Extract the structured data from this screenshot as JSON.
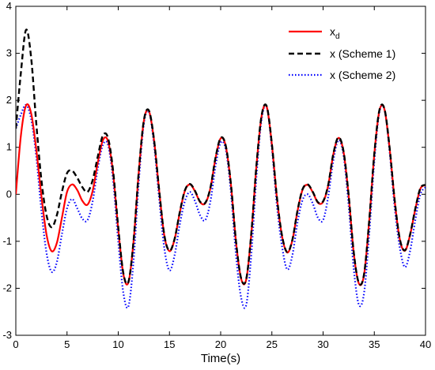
{
  "chart_data": {
    "type": "line",
    "xlabel": "Time(s)",
    "ylabel": "",
    "xlim": [
      0,
      40
    ],
    "ylim": [
      -3,
      4
    ],
    "xticks": [
      "0",
      "5",
      "10",
      "15",
      "20",
      "25",
      "30",
      "35",
      "40"
    ],
    "yticks": [
      "-3",
      "-2",
      "-1",
      "0",
      "1",
      "2",
      "3",
      "4"
    ],
    "grid": false,
    "legend_position": "top-right",
    "legend": {
      "xd_main": "x",
      "xd_sub": "d",
      "s1": "x (Scheme 1)",
      "s2": "x (Scheme 2)"
    },
    "series": [
      {
        "key": "xd",
        "color": "#ff0000",
        "style": "solid",
        "x": [
          0,
          0.5,
          1,
          1.5,
          2,
          2.5,
          3,
          3.5,
          4,
          4.5,
          5,
          5.5,
          6,
          6.5,
          7,
          7.5,
          8,
          8.5,
          9,
          9.5,
          10,
          10.5,
          11,
          11.5,
          12,
          12.5,
          13,
          13.5,
          14,
          14.5,
          15,
          15.5,
          16,
          16.5,
          17,
          17.5,
          18,
          18.5,
          19,
          19.5,
          20,
          20.5,
          21,
          21.5,
          22,
          22.5,
          23,
          23.5,
          24,
          24.5,
          25,
          25.5,
          26,
          26.5,
          27,
          27.5,
          28,
          28.5,
          29,
          29.5,
          30,
          30.5,
          31,
          31.5,
          32,
          32.5,
          33,
          33.5,
          34,
          34.5,
          35,
          35.5,
          36,
          36.5,
          37,
          37.5,
          38,
          38.5,
          39,
          39.5,
          40
        ],
        "y": [
          0,
          1.26,
          1.89,
          1.72,
          0.95,
          -0.04,
          -0.86,
          -1.21,
          -1.04,
          -0.5,
          0.05,
          0.21,
          0.09,
          -0.14,
          -0.22,
          0.07,
          0.67,
          1.15,
          1.13,
          0.44,
          -0.74,
          -1.7,
          -1.87,
          -0.99,
          0.46,
          1.56,
          1.77,
          1.14,
          0.07,
          -0.88,
          -1.21,
          -0.96,
          -0.4,
          0.07,
          0.21,
          0.06,
          -0.17,
          -0.19,
          0.13,
          0.77,
          1.19,
          1.02,
          0.21,
          -1.02,
          -1.8,
          -1.81,
          -0.82,
          0.62,
          1.67,
          1.86,
          1.06,
          -0.09,
          -0.9,
          -1.24,
          -0.98,
          -0.36,
          0.1,
          0.2,
          0.04,
          -0.18,
          -0.16,
          0.19,
          0.85,
          1.2,
          0.9,
          -0.04,
          -1.26,
          -1.9,
          -1.71,
          -0.58,
          0.85,
          1.78,
          1.8,
          0.97,
          -0.16,
          -0.97,
          -1.2,
          -0.86,
          -0.32,
          0.12,
          0.19
        ]
      },
      {
        "key": "s1",
        "color": "#000000",
        "style": "dashed",
        "x": [
          0,
          0.5,
          1,
          1.5,
          2,
          2.5,
          3,
          3.5,
          4,
          4.5,
          5,
          5.5,
          6,
          6.5,
          7,
          7.5,
          8,
          8.5,
          9,
          9.5,
          10,
          10.5,
          11,
          11.5,
          12,
          12.5,
          13,
          13.5,
          14,
          14.5,
          15,
          15.5,
          16,
          16.5,
          17,
          17.5,
          18,
          18.5,
          19,
          19.5,
          20,
          20.5,
          21,
          21.5,
          22,
          22.5,
          23,
          23.5,
          24,
          24.5,
          25,
          25.5,
          26,
          26.5,
          27,
          27.5,
          28,
          28.5,
          29,
          29.5,
          30,
          30.5,
          31,
          31.5,
          32,
          32.5,
          33,
          33.5,
          34,
          34.5,
          35,
          35.5,
          36,
          36.5,
          37,
          37.5,
          38,
          38.5,
          39,
          39.5,
          40
        ],
        "y": [
          1.4,
          2.6,
          3.5,
          2.9,
          1.5,
          0.3,
          -0.45,
          -0.7,
          -0.45,
          0.05,
          0.45,
          0.5,
          0.35,
          0.15,
          0.05,
          0.3,
          0.8,
          1.25,
          1.2,
          0.5,
          -0.7,
          -1.68,
          -1.86,
          -0.98,
          0.47,
          1.57,
          1.78,
          1.15,
          0.08,
          -0.87,
          -1.2,
          -0.95,
          -0.39,
          0.08,
          0.22,
          0.07,
          -0.16,
          -0.18,
          0.14,
          0.78,
          1.2,
          1.03,
          0.22,
          -1.01,
          -1.79,
          -1.8,
          -0.81,
          0.63,
          1.68,
          1.87,
          1.07,
          -0.08,
          -0.89,
          -1.23,
          -0.97,
          -0.35,
          0.11,
          0.21,
          0.05,
          -0.17,
          -0.15,
          0.2,
          0.86,
          1.21,
          0.91,
          -0.03,
          -1.25,
          -1.89,
          -1.7,
          -0.57,
          0.86,
          1.79,
          1.81,
          0.98,
          -0.15,
          -0.96,
          -1.19,
          -0.85,
          -0.31,
          0.13,
          0.2
        ]
      },
      {
        "key": "s2",
        "color": "#0000ff",
        "style": "dotted",
        "x": [
          0,
          0.5,
          1,
          1.5,
          2,
          2.5,
          3,
          3.5,
          4,
          4.5,
          5,
          5.5,
          6,
          6.5,
          7,
          7.5,
          8,
          8.5,
          9,
          9.5,
          10,
          10.5,
          11,
          11.5,
          12,
          12.5,
          13,
          13.5,
          14,
          14.5,
          15,
          15.5,
          16,
          16.5,
          17,
          17.5,
          18,
          18.5,
          19,
          19.5,
          20,
          20.5,
          21,
          21.5,
          22,
          22.5,
          23,
          23.5,
          24,
          24.5,
          25,
          25.5,
          26,
          26.5,
          27,
          27.5,
          28,
          28.5,
          29,
          29.5,
          30,
          30.5,
          31,
          31.5,
          32,
          32.5,
          33,
          33.5,
          34,
          34.5,
          35,
          35.5,
          36,
          36.5,
          37,
          37.5,
          38,
          38.5,
          39,
          39.5,
          40
        ],
        "y": [
          1.4,
          1.7,
          1.9,
          1.6,
          0.8,
          -0.35,
          -1.25,
          -1.65,
          -1.45,
          -0.85,
          -0.3,
          -0.1,
          -0.3,
          -0.52,
          -0.55,
          -0.15,
          0.55,
          1.05,
          1.05,
          0.3,
          -1.0,
          -2.1,
          -2.38,
          -1.4,
          0.25,
          1.5,
          1.75,
          1.05,
          -0.1,
          -1.15,
          -1.62,
          -1.3,
          -0.65,
          -0.15,
          0.05,
          -0.15,
          -0.45,
          -0.55,
          -0.15,
          0.6,
          1.1,
          0.95,
          0.05,
          -1.3,
          -2.2,
          -2.35,
          -1.25,
          0.4,
          1.6,
          1.85,
          0.98,
          -0.25,
          -1.12,
          -1.6,
          -1.3,
          -0.6,
          -0.12,
          0.0,
          -0.2,
          -0.5,
          -0.55,
          -0.05,
          0.72,
          1.15,
          0.82,
          -0.25,
          -1.6,
          -2.35,
          -2.1,
          -0.85,
          0.7,
          1.75,
          1.8,
          0.9,
          -0.3,
          -1.15,
          -1.55,
          -1.2,
          -0.55,
          0.0,
          0.15
        ]
      }
    ]
  }
}
